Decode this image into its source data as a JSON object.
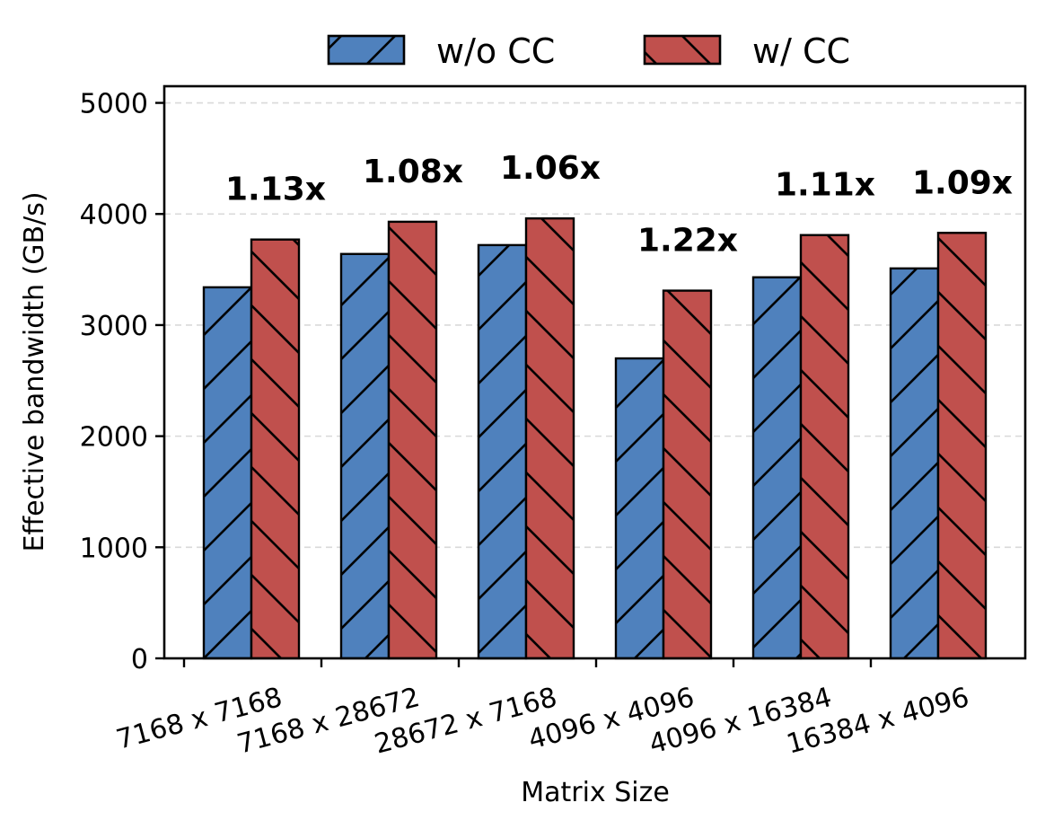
{
  "chart_data": {
    "type": "bar",
    "title": "",
    "xlabel": "Matrix Size",
    "ylabel": "Effective bandwidth (GB/s)",
    "categories": [
      "7168 x 7168",
      "7168 x 28672",
      "28672 x 7168",
      "4096 x 4096",
      "4096 x 16384",
      "16384 x 4096"
    ],
    "series": [
      {
        "name": "w/o CC",
        "values": [
          3340,
          3640,
          3720,
          2700,
          3430,
          3510
        ],
        "color": "#4f81bd",
        "hatch": "forward-slash"
      },
      {
        "name": "w/ CC",
        "values": [
          3770,
          3930,
          3960,
          3310,
          3810,
          3830
        ],
        "color": "#c0504d",
        "hatch": "back-slash"
      }
    ],
    "annotations": [
      "1.13x",
      "1.08x",
      "1.06x",
      "1.22x",
      "1.11x",
      "1.09x"
    ],
    "ylim": [
      0,
      5150
    ],
    "yticks": [
      0,
      1000,
      2000,
      3000,
      4000,
      5000
    ],
    "grid": "horizontal dashed",
    "legend_position": "top-center"
  }
}
